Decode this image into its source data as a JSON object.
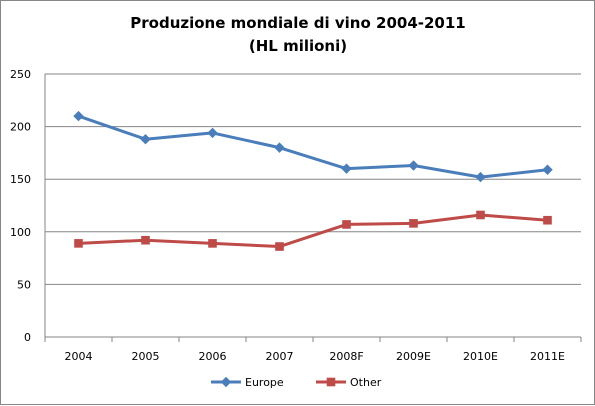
{
  "chart_data": {
    "type": "line",
    "title": "Produzione mondiale di vino 2004-2011",
    "subtitle": "(HL milioni)",
    "categories": [
      "2004",
      "2005",
      "2006",
      "2007",
      "2008F",
      "2009E",
      "2010E",
      "2011E"
    ],
    "series": [
      {
        "name": "Europe",
        "color": "#4a7ebb",
        "marker": "diamond",
        "values": [
          210,
          188,
          194,
          180,
          160,
          163,
          152,
          159
        ]
      },
      {
        "name": "Other",
        "color": "#be4b48",
        "marker": "square",
        "values": [
          89,
          92,
          89,
          86,
          107,
          108,
          116,
          111
        ]
      }
    ],
    "yticks": [
      "0",
      "50",
      "100",
      "150",
      "200",
      "250"
    ],
    "ylim": [
      0,
      250
    ],
    "grid": true,
    "legend_position": "bottom"
  }
}
